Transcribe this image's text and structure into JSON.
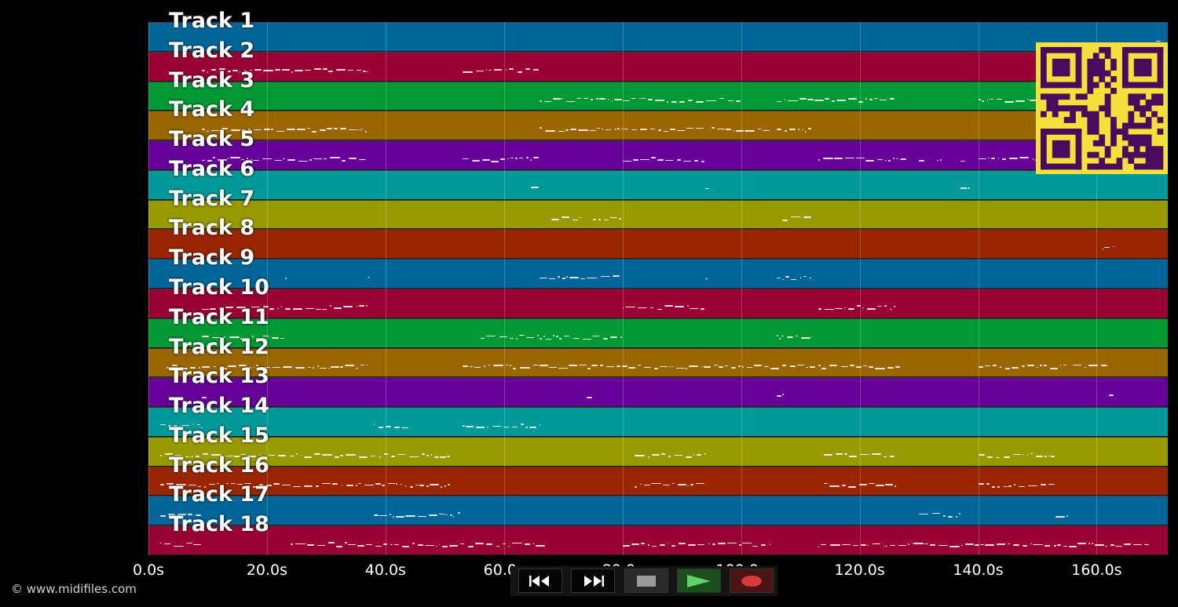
{
  "tracks": [
    {
      "label": "Track 1",
      "color": "#006699"
    },
    {
      "label": "Track 2",
      "color": "#990033"
    },
    {
      "label": "Track 3",
      "color": "#009933"
    },
    {
      "label": "Track 4",
      "color": "#996600"
    },
    {
      "label": "Track 5",
      "color": "#660099"
    },
    {
      "label": "Track 6",
      "color": "#009999"
    },
    {
      "label": "Track 7",
      "color": "#999900"
    },
    {
      "label": "Track 8",
      "color": "#992600"
    },
    {
      "label": "Track 9",
      "color": "#006699"
    },
    {
      "label": "Track 10",
      "color": "#990033"
    },
    {
      "label": "Track 11",
      "color": "#009933"
    },
    {
      "label": "Track 12",
      "color": "#996600"
    },
    {
      "label": "Track 13",
      "color": "#660099"
    },
    {
      "label": "Track 14",
      "color": "#009999"
    },
    {
      "label": "Track 15",
      "color": "#999900"
    },
    {
      "label": "Track 16",
      "color": "#992600"
    },
    {
      "label": "Track 17",
      "color": "#006699"
    },
    {
      "label": "Track 18",
      "color": "#990033"
    }
  ],
  "timeline": {
    "max_seconds": 172,
    "ticks": [
      {
        "value": 0,
        "label": "0.0s"
      },
      {
        "value": 20,
        "label": "20.0s"
      },
      {
        "value": 40,
        "label": "40.0s"
      },
      {
        "value": 60,
        "label": "60.0s"
      },
      {
        "value": 80,
        "label": "80.0s"
      },
      {
        "value": 100,
        "label": "100.0s"
      },
      {
        "value": 120,
        "label": "120.0s"
      },
      {
        "value": 140,
        "label": "140.0s"
      },
      {
        "value": 160,
        "label": "160.0s"
      }
    ]
  },
  "note_segments": [
    [
      [
        170,
        171
      ]
    ],
    [
      [
        9,
        37
      ],
      [
        53,
        66
      ]
    ],
    [
      [
        66,
        80
      ],
      [
        80,
        100
      ],
      [
        106,
        126
      ],
      [
        140,
        150
      ]
    ],
    [
      [
        9,
        37
      ],
      [
        66,
        94
      ],
      [
        95,
        105
      ],
      [
        106,
        112
      ]
    ],
    [
      [
        9,
        37
      ],
      [
        53,
        66
      ],
      [
        80,
        94
      ],
      [
        113,
        127
      ],
      [
        140,
        151
      ],
      [
        127,
        128
      ],
      [
        130,
        131
      ],
      [
        133,
        134
      ],
      [
        137,
        138
      ]
    ],
    [
      [
        64.5,
        66
      ],
      [
        94,
        94.8
      ],
      [
        137,
        139
      ]
    ],
    [
      [
        68,
        73
      ],
      [
        75,
        80
      ],
      [
        107,
        112
      ]
    ],
    [
      [
        161,
        163
      ]
    ],
    [
      [
        23,
        23.5
      ],
      [
        37,
        37.5
      ],
      [
        66,
        80
      ],
      [
        94,
        94.5
      ],
      [
        106,
        112
      ]
    ],
    [
      [
        9,
        37
      ],
      [
        80,
        94
      ],
      [
        113,
        126
      ]
    ],
    [
      [
        9,
        23
      ],
      [
        56,
        66
      ],
      [
        66,
        80
      ],
      [
        106,
        112
      ]
    ],
    [
      [
        3,
        37
      ],
      [
        53,
        66
      ],
      [
        66,
        127
      ],
      [
        140,
        155
      ],
      [
        156,
        162
      ]
    ],
    [
      [
        9,
        10
      ],
      [
        74,
        75
      ],
      [
        106,
        107
      ],
      [
        162,
        163
      ]
    ],
    [
      [
        2,
        9
      ],
      [
        38,
        44
      ],
      [
        53,
        66
      ]
    ],
    [
      [
        2,
        51
      ],
      [
        82,
        94
      ],
      [
        114,
        126
      ],
      [
        140,
        153
      ]
    ],
    [
      [
        2,
        51
      ],
      [
        82,
        94
      ],
      [
        114,
        126
      ],
      [
        140,
        153
      ]
    ],
    [
      [
        2,
        9
      ],
      [
        38,
        53
      ],
      [
        130,
        137
      ],
      [
        153,
        155
      ]
    ],
    [
      [
        2,
        9
      ],
      [
        24,
        67
      ],
      [
        80,
        105
      ],
      [
        113,
        169
      ]
    ]
  ],
  "qr_code": {
    "fg": "#4a0b5e",
    "bg": "#f3e03a"
  },
  "copyright": "© www.midifiles.com",
  "transport": {
    "rewind_icon": "rewind-icon",
    "forward_icon": "fast-forward-icon",
    "stop_icon": "stop-icon",
    "play_icon": "play-icon",
    "record_icon": "record-icon"
  }
}
